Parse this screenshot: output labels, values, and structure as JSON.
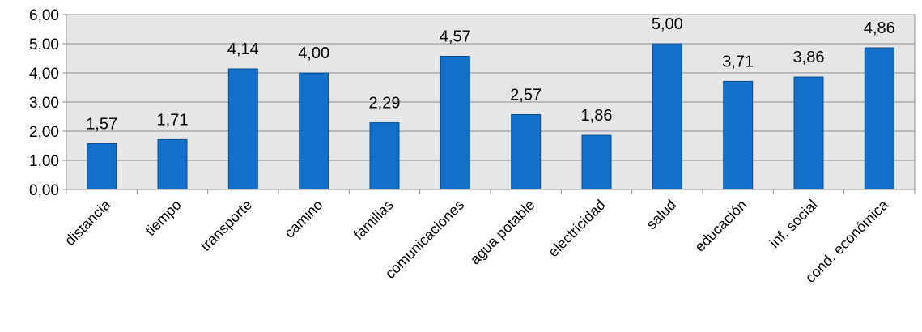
{
  "chart_data": {
    "type": "bar",
    "title": "",
    "xlabel": "",
    "ylabel": "",
    "categories": [
      "distancia",
      "tiempo",
      "transporte",
      "camino",
      "familias",
      "comunicaciones",
      "agua potable",
      "electricidad",
      "salud",
      "educación",
      "inf. social",
      "cond. económica"
    ],
    "values": [
      1.57,
      1.71,
      4.14,
      4.0,
      2.29,
      4.57,
      2.57,
      1.86,
      5.0,
      3.71,
      3.86,
      4.86
    ],
    "data_labels": [
      "1,57",
      "1,71",
      "4,14",
      "4,00",
      "2,29",
      "4,57",
      "2,57",
      "1,86",
      "5,00",
      "3,71",
      "3,86",
      "4,86"
    ],
    "ylim": [
      0,
      6
    ],
    "yticks": [
      0,
      1,
      2,
      3,
      4,
      5,
      6
    ],
    "ytick_labels": [
      "0,00",
      "1,00",
      "2,00",
      "3,00",
      "4,00",
      "5,00",
      "6,00"
    ],
    "grid": true,
    "legend": "none",
    "bar_color": "#1270cb",
    "plot_background": "#e6e6e6"
  }
}
